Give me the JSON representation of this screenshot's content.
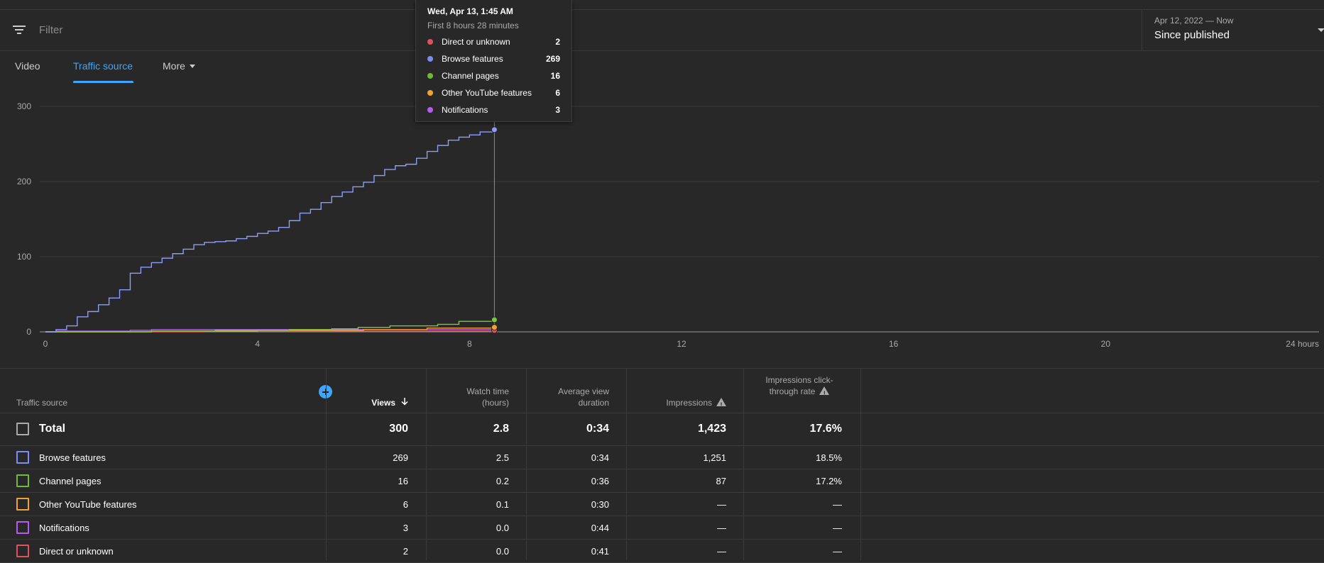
{
  "filter": {
    "placeholder": "Filter"
  },
  "date_range": {
    "range": "Apr 12, 2022 — Now",
    "label": "Since published"
  },
  "tabs": [
    {
      "label": "Video"
    },
    {
      "label": "Traffic source",
      "active": true
    },
    {
      "label": "More"
    }
  ],
  "tooltip": {
    "title": "Wed, Apr 13, 1:45 AM",
    "subtitle": "First 8 hours 28 minutes",
    "rows": [
      {
        "label": "Direct or unknown",
        "value": "2",
        "color": "#e0505f"
      },
      {
        "label": "Browse features",
        "value": "269",
        "color": "#7b8cf2"
      },
      {
        "label": "Channel pages",
        "value": "16",
        "color": "#6fbb32"
      },
      {
        "label": "Other YouTube features",
        "value": "6",
        "color": "#f2a32f"
      },
      {
        "label": "Notifications",
        "value": "3",
        "color": "#b45cf0"
      }
    ]
  },
  "chart_data": {
    "type": "line",
    "xlabel": "",
    "ylabel": "",
    "x_ticks": [
      "0",
      "4",
      "8",
      "12",
      "16",
      "20",
      "24 hours"
    ],
    "y_ticks": [
      "0",
      "100",
      "200",
      "300"
    ],
    "xlim": [
      0,
      24
    ],
    "ylim": [
      0,
      300
    ],
    "grid": true,
    "cursor_x": 8.47,
    "series": [
      {
        "name": "Browse features",
        "color": "#8e9bf8",
        "x": [
          0,
          0.2,
          0.4,
          0.6,
          0.8,
          1.0,
          1.2,
          1.4,
          1.6,
          1.8,
          2.0,
          2.2,
          2.4,
          2.6,
          2.8,
          3.0,
          3.2,
          3.4,
          3.6,
          3.8,
          4.0,
          4.2,
          4.4,
          4.6,
          4.8,
          5.0,
          5.2,
          5.4,
          5.6,
          5.8,
          6.0,
          6.2,
          6.4,
          6.6,
          6.8,
          7.0,
          7.2,
          7.4,
          7.6,
          7.8,
          8.0,
          8.2,
          8.47
        ],
        "y": [
          0,
          3,
          8,
          20,
          27,
          36,
          45,
          56,
          78,
          86,
          92,
          98,
          104,
          110,
          116,
          119,
          120,
          121,
          124,
          127,
          131,
          134,
          139,
          148,
          158,
          163,
          172,
          180,
          186,
          193,
          199,
          208,
          216,
          221,
          223,
          231,
          240,
          248,
          255,
          259,
          262,
          266,
          269
        ]
      },
      {
        "name": "Channel pages",
        "color": "#78c93c",
        "x": [
          0,
          1.0,
          2.0,
          3.2,
          4.0,
          4.6,
          5.4,
          5.9,
          6.5,
          7.4,
          7.8,
          8.47
        ],
        "y": [
          0,
          0,
          1,
          2,
          2,
          3,
          4,
          6,
          8,
          10,
          14,
          16
        ]
      },
      {
        "name": "Other YouTube features",
        "color": "#f2a32f",
        "x": [
          0,
          2.0,
          4.0,
          6.0,
          7.2,
          8.47
        ],
        "y": [
          0,
          1,
          2,
          3,
          5,
          6
        ]
      },
      {
        "name": "Direct or unknown",
        "color": "#e0505f",
        "x": [
          0,
          3.0,
          6.0,
          8.47
        ],
        "y": [
          0,
          1,
          1,
          2
        ]
      },
      {
        "name": "Notifications",
        "color": "#b45cf0",
        "x": [
          0,
          0.2,
          1.6,
          2.0,
          8.47
        ],
        "y": [
          0,
          1,
          2,
          3,
          3
        ]
      }
    ]
  },
  "table": {
    "headers": {
      "source": "Traffic source",
      "views": "Views",
      "watch_time": "Watch time (hours)",
      "avd": "Average view duration",
      "impressions": "Impressions",
      "ctr": "Impressions click-through rate"
    },
    "total": {
      "label": "Total",
      "views": "300",
      "watch_time": "2.8",
      "avd": "0:34",
      "impressions": "1,423",
      "ctr": "17.6%"
    },
    "rows": [
      {
        "label": "Browse features",
        "color": "#7b8cf2",
        "views": "269",
        "watch_time": "2.5",
        "avd": "0:34",
        "impressions": "1,251",
        "ctr": "18.5%"
      },
      {
        "label": "Channel pages",
        "color": "#6fbb32",
        "views": "16",
        "watch_time": "0.2",
        "avd": "0:36",
        "impressions": "87",
        "ctr": "17.2%"
      },
      {
        "label": "Other YouTube features",
        "color": "#f2a32f",
        "views": "6",
        "watch_time": "0.1",
        "avd": "0:30",
        "impressions": "—",
        "ctr": "—"
      },
      {
        "label": "Notifications",
        "color": "#b45cf0",
        "views": "3",
        "watch_time": "0.0",
        "avd": "0:44",
        "impressions": "—",
        "ctr": "—"
      },
      {
        "label": "Direct or unknown",
        "color": "#e0505f",
        "views": "2",
        "watch_time": "0.0",
        "avd": "0:41",
        "impressions": "—",
        "ctr": "—"
      }
    ]
  }
}
